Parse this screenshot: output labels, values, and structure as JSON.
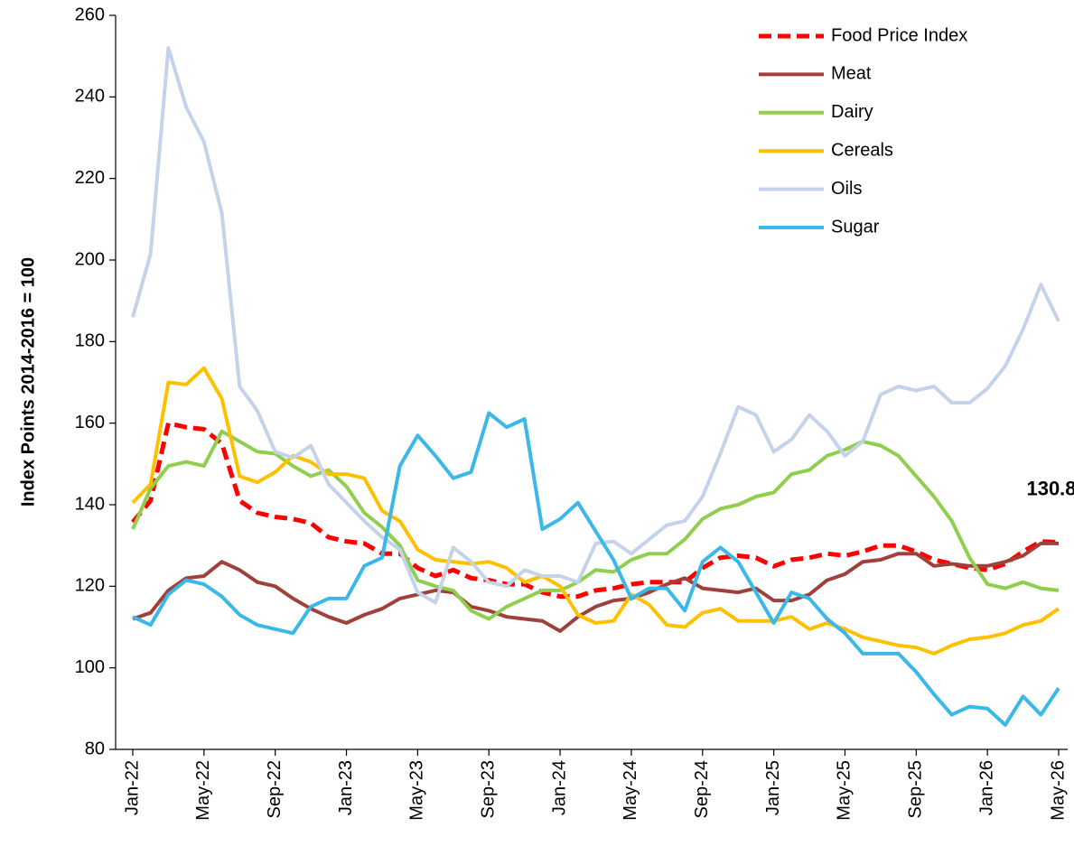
{
  "chart_data": {
    "type": "line",
    "y_label": "Index Points 2014-2016 = 100",
    "annotation": "130.8",
    "categories": [
      "Jan-22",
      null,
      null,
      null,
      "May-22",
      null,
      null,
      null,
      "Sep-22",
      null,
      null,
      null,
      "Jan-23",
      null,
      null,
      null,
      "May-23",
      null,
      null,
      null,
      "Sep-23",
      null,
      null,
      null,
      "Jan-24",
      null,
      null,
      null,
      "May-24",
      null,
      null,
      null,
      "Sep-24",
      null,
      null,
      null,
      "Jan-25",
      null,
      null,
      null,
      "May-25",
      null,
      null,
      null,
      "Sep-25",
      null,
      null,
      null,
      "Jan-26",
      null,
      null,
      null,
      "May-26"
    ],
    "series": [
      {
        "name": "Food Price Index",
        "color": "#ff0000",
        "dash": true,
        "values": [
          135.7,
          141,
          160,
          159,
          158.5,
          155,
          141,
          138,
          137,
          136.5,
          135.5,
          132,
          131,
          130.5,
          128,
          128,
          124.5,
          122.5,
          124,
          122,
          121.5,
          120.5,
          120.5,
          118.5,
          117.5,
          117.5,
          119,
          119.5,
          120.5,
          121,
          121,
          121,
          124.5,
          127,
          127.5,
          127,
          124.9,
          126.5,
          127,
          128,
          127.5,
          128.5,
          130,
          130,
          128.5,
          126.5,
          125.5,
          124.5,
          124,
          125.5,
          128.5,
          131,
          130.8
        ]
      },
      {
        "name": "Meat",
        "color": "#a0403a",
        "dash": false,
        "values": [
          112,
          113.5,
          119,
          122,
          122.5,
          126,
          124,
          121,
          120,
          117,
          114.5,
          112.5,
          111,
          113,
          114.5,
          117,
          118,
          119,
          118.5,
          115,
          114,
          112.5,
          112,
          111.5,
          109,
          112.5,
          115,
          116.5,
          117,
          118.5,
          120.5,
          122,
          119.5,
          119,
          118.5,
          119.5,
          116.5,
          116.5,
          118,
          121.5,
          123,
          126,
          126.5,
          128,
          128,
          125,
          125.5,
          125,
          125,
          126,
          127.5,
          130.5,
          130.5
        ]
      },
      {
        "name": "Dairy",
        "color": "#8fce4e",
        "dash": false,
        "values": [
          134,
          144,
          149.5,
          150.5,
          149.5,
          158,
          155.5,
          153,
          152.5,
          149.5,
          147,
          148.5,
          144.5,
          138,
          134.5,
          130,
          121.5,
          120,
          119,
          114,
          112,
          115,
          117,
          119,
          119,
          121,
          124,
          123.5,
          126.5,
          128,
          128,
          131.5,
          136.5,
          139,
          140,
          142,
          143,
          147.5,
          148.5,
          152,
          153.5,
          155.5,
          154.5,
          152,
          147,
          142,
          136,
          127,
          120.5,
          119.5,
          121,
          119.5,
          119
        ]
      },
      {
        "name": "Cereals",
        "color": "#ffc000",
        "dash": false,
        "values": [
          140.5,
          145,
          170,
          169.5,
          173.5,
          166,
          147,
          145.5,
          148,
          152,
          150.5,
          147.5,
          147.5,
          146.5,
          138.5,
          136,
          129,
          126.5,
          126,
          125.5,
          126,
          124.5,
          121,
          122.5,
          120,
          113,
          111,
          111.5,
          118,
          115.5,
          110.5,
          110,
          113.5,
          114.5,
          111.5,
          111.5,
          111.5,
          112.5,
          109.5,
          111,
          109.5,
          107.5,
          106.5,
          105.5,
          105,
          103.5,
          105.5,
          107,
          107.5,
          108.5,
          110.5,
          111.5,
          114.5
        ]
      },
      {
        "name": "Oils",
        "color": "#c5d3ea",
        "dash": false,
        "values": [
          186,
          201.5,
          252,
          237.5,
          229,
          211.5,
          169,
          163,
          153,
          151.5,
          154.5,
          145,
          140.5,
          136,
          132,
          129,
          118.5,
          116,
          129.5,
          126,
          121,
          120,
          124,
          122.5,
          122.5,
          121,
          130.5,
          131,
          128,
          131.5,
          135,
          136,
          142,
          152.5,
          164,
          162,
          153,
          156,
          162,
          158,
          152,
          155.5,
          167,
          169,
          168,
          169,
          165,
          165,
          168.5,
          174,
          183,
          194,
          185
        ]
      },
      {
        "name": "Sugar",
        "color": "#3ab8e8",
        "dash": false,
        "values": [
          112.5,
          110.5,
          118,
          121.5,
          120.5,
          117.5,
          113,
          110.5,
          109.5,
          108.5,
          115,
          117,
          117,
          125,
          127,
          149.5,
          157,
          152,
          146.5,
          148,
          162.5,
          159,
          161,
          134,
          136.5,
          140.5,
          133.5,
          126.5,
          117,
          119.5,
          119.5,
          114,
          126,
          129.5,
          126,
          118.5,
          111,
          118.5,
          117,
          112,
          108.5,
          103.5,
          103.5,
          103.5,
          99,
          93.5,
          88.5,
          90.5,
          90,
          86,
          93,
          88.5,
          95
        ]
      }
    ],
    "ylim": [
      80,
      260
    ],
    "yticks": [
      80,
      100,
      120,
      140,
      160,
      180,
      200,
      220,
      240,
      260
    ],
    "grid": false,
    "legend": "top-right"
  }
}
